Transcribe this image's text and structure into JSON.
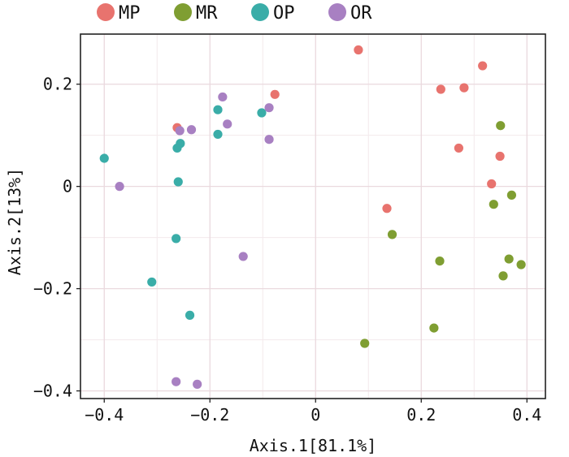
{
  "chart_data": {
    "type": "scatter",
    "title": "",
    "xlabel": "Axis.1[81.1%]",
    "ylabel": "Axis.2[13%]",
    "xlim": [
      -0.445,
      0.435
    ],
    "ylim": [
      -0.415,
      0.298
    ],
    "xticks": [
      -0.4,
      -0.2,
      0,
      0.2,
      0.4
    ],
    "yticks": [
      0.2,
      0,
      -0.2,
      -0.4
    ],
    "xtick_labels": [
      "−0.4",
      "−0.2",
      "0",
      "0.2",
      "0.4"
    ],
    "ytick_labels": [
      "0.2",
      "0",
      "−0.2",
      "−0.4"
    ],
    "x_minor_gridlines": [
      -0.3,
      -0.1,
      0.1,
      0.3
    ],
    "y_minor_gridlines": [
      0.1,
      -0.1,
      -0.3
    ],
    "grid": true,
    "legend_position": "top",
    "series": [
      {
        "name": "MP",
        "color": "#E8736E",
        "points": [
          [
            0.081,
            0.267
          ],
          [
            0.316,
            0.236
          ],
          [
            0.237,
            0.19
          ],
          [
            0.281,
            0.193
          ],
          [
            -0.077,
            0.18
          ],
          [
            -0.262,
            0.115
          ],
          [
            0.271,
            0.075
          ],
          [
            0.349,
            0.059
          ],
          [
            0.333,
            0.005
          ],
          [
            0.135,
            -0.043
          ]
        ]
      },
      {
        "name": "MR",
        "color": "#7F9E32",
        "points": [
          [
            0.35,
            0.119
          ],
          [
            0.371,
            -0.017
          ],
          [
            0.337,
            -0.035
          ],
          [
            0.145,
            -0.094
          ],
          [
            0.235,
            -0.146
          ],
          [
            0.366,
            -0.142
          ],
          [
            0.389,
            -0.153
          ],
          [
            0.355,
            -0.175
          ],
          [
            0.224,
            -0.277
          ],
          [
            0.093,
            -0.307
          ]
        ]
      },
      {
        "name": "OP",
        "color": "#3AADA8",
        "points": [
          [
            -0.185,
            0.15
          ],
          [
            -0.102,
            0.144
          ],
          [
            -0.185,
            0.102
          ],
          [
            -0.256,
            0.084
          ],
          [
            -0.262,
            0.075
          ],
          [
            -0.4,
            0.055
          ],
          [
            -0.26,
            0.009
          ],
          [
            -0.264,
            -0.102
          ],
          [
            -0.31,
            -0.187
          ],
          [
            -0.238,
            -0.252
          ]
        ]
      },
      {
        "name": "OR",
        "color": "#A880C2",
        "points": [
          [
            -0.176,
            0.175
          ],
          [
            -0.088,
            0.154
          ],
          [
            -0.167,
            0.122
          ],
          [
            -0.235,
            0.111
          ],
          [
            -0.257,
            0.109
          ],
          [
            -0.088,
            0.092
          ],
          [
            -0.371,
            0.0
          ],
          [
            -0.137,
            -0.137
          ],
          [
            -0.264,
            -0.382
          ],
          [
            -0.224,
            -0.387
          ]
        ]
      }
    ]
  }
}
